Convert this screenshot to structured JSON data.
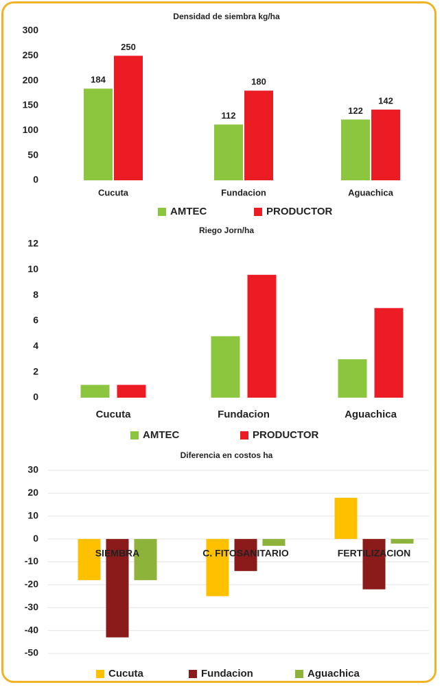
{
  "chart_data": [
    {
      "type": "bar",
      "title": "Densidad de siembra kg/ha",
      "categories": [
        "Cucuta",
        "Fundacion",
        "Aguachica"
      ],
      "series": [
        {
          "name": "AMTEC",
          "color": "#8cc63f",
          "values": [
            184,
            112,
            122
          ]
        },
        {
          "name": "PRODUCTOR",
          "color": "#ec1c24",
          "values": [
            250,
            180,
            142
          ]
        }
      ],
      "ylim": [
        0,
        300
      ],
      "yticks": [
        0,
        50,
        100,
        150,
        200,
        250,
        300
      ],
      "data_labels": true,
      "grid": false
    },
    {
      "type": "bar",
      "title": "Riego Jorn/ha",
      "categories": [
        "Cucuta",
        "Fundacion",
        "Aguachica"
      ],
      "series": [
        {
          "name": "AMTEC",
          "color": "#8cc63f",
          "values": [
            1,
            4.8,
            3
          ]
        },
        {
          "name": "PRODUCTOR",
          "color": "#ec1c24",
          "values": [
            1,
            9.6,
            7
          ]
        }
      ],
      "ylim": [
        0,
        12
      ],
      "yticks": [
        0,
        2,
        4,
        6,
        8,
        10,
        12
      ],
      "data_labels": false,
      "grid": false
    },
    {
      "type": "bar",
      "title": "Diferencia en costos ha",
      "categories": [
        "SIEMBRA",
        "C. FITOSANITARIO",
        "FERTILIZACION"
      ],
      "series": [
        {
          "name": "Cucuta",
          "color": "#ffc000",
          "values": [
            -18,
            -25,
            18
          ]
        },
        {
          "name": "Fundacion",
          "color": "#8b1a1a",
          "values": [
            -43,
            -14,
            -22
          ]
        },
        {
          "name": "Aguachica",
          "color": "#8db33a",
          "values": [
            -18,
            -3,
            -2
          ]
        }
      ],
      "ylim": [
        -50,
        30
      ],
      "yticks": [
        -50,
        -40,
        -30,
        -20,
        -10,
        0,
        10,
        20,
        30
      ],
      "data_labels": false,
      "grid": true
    }
  ]
}
